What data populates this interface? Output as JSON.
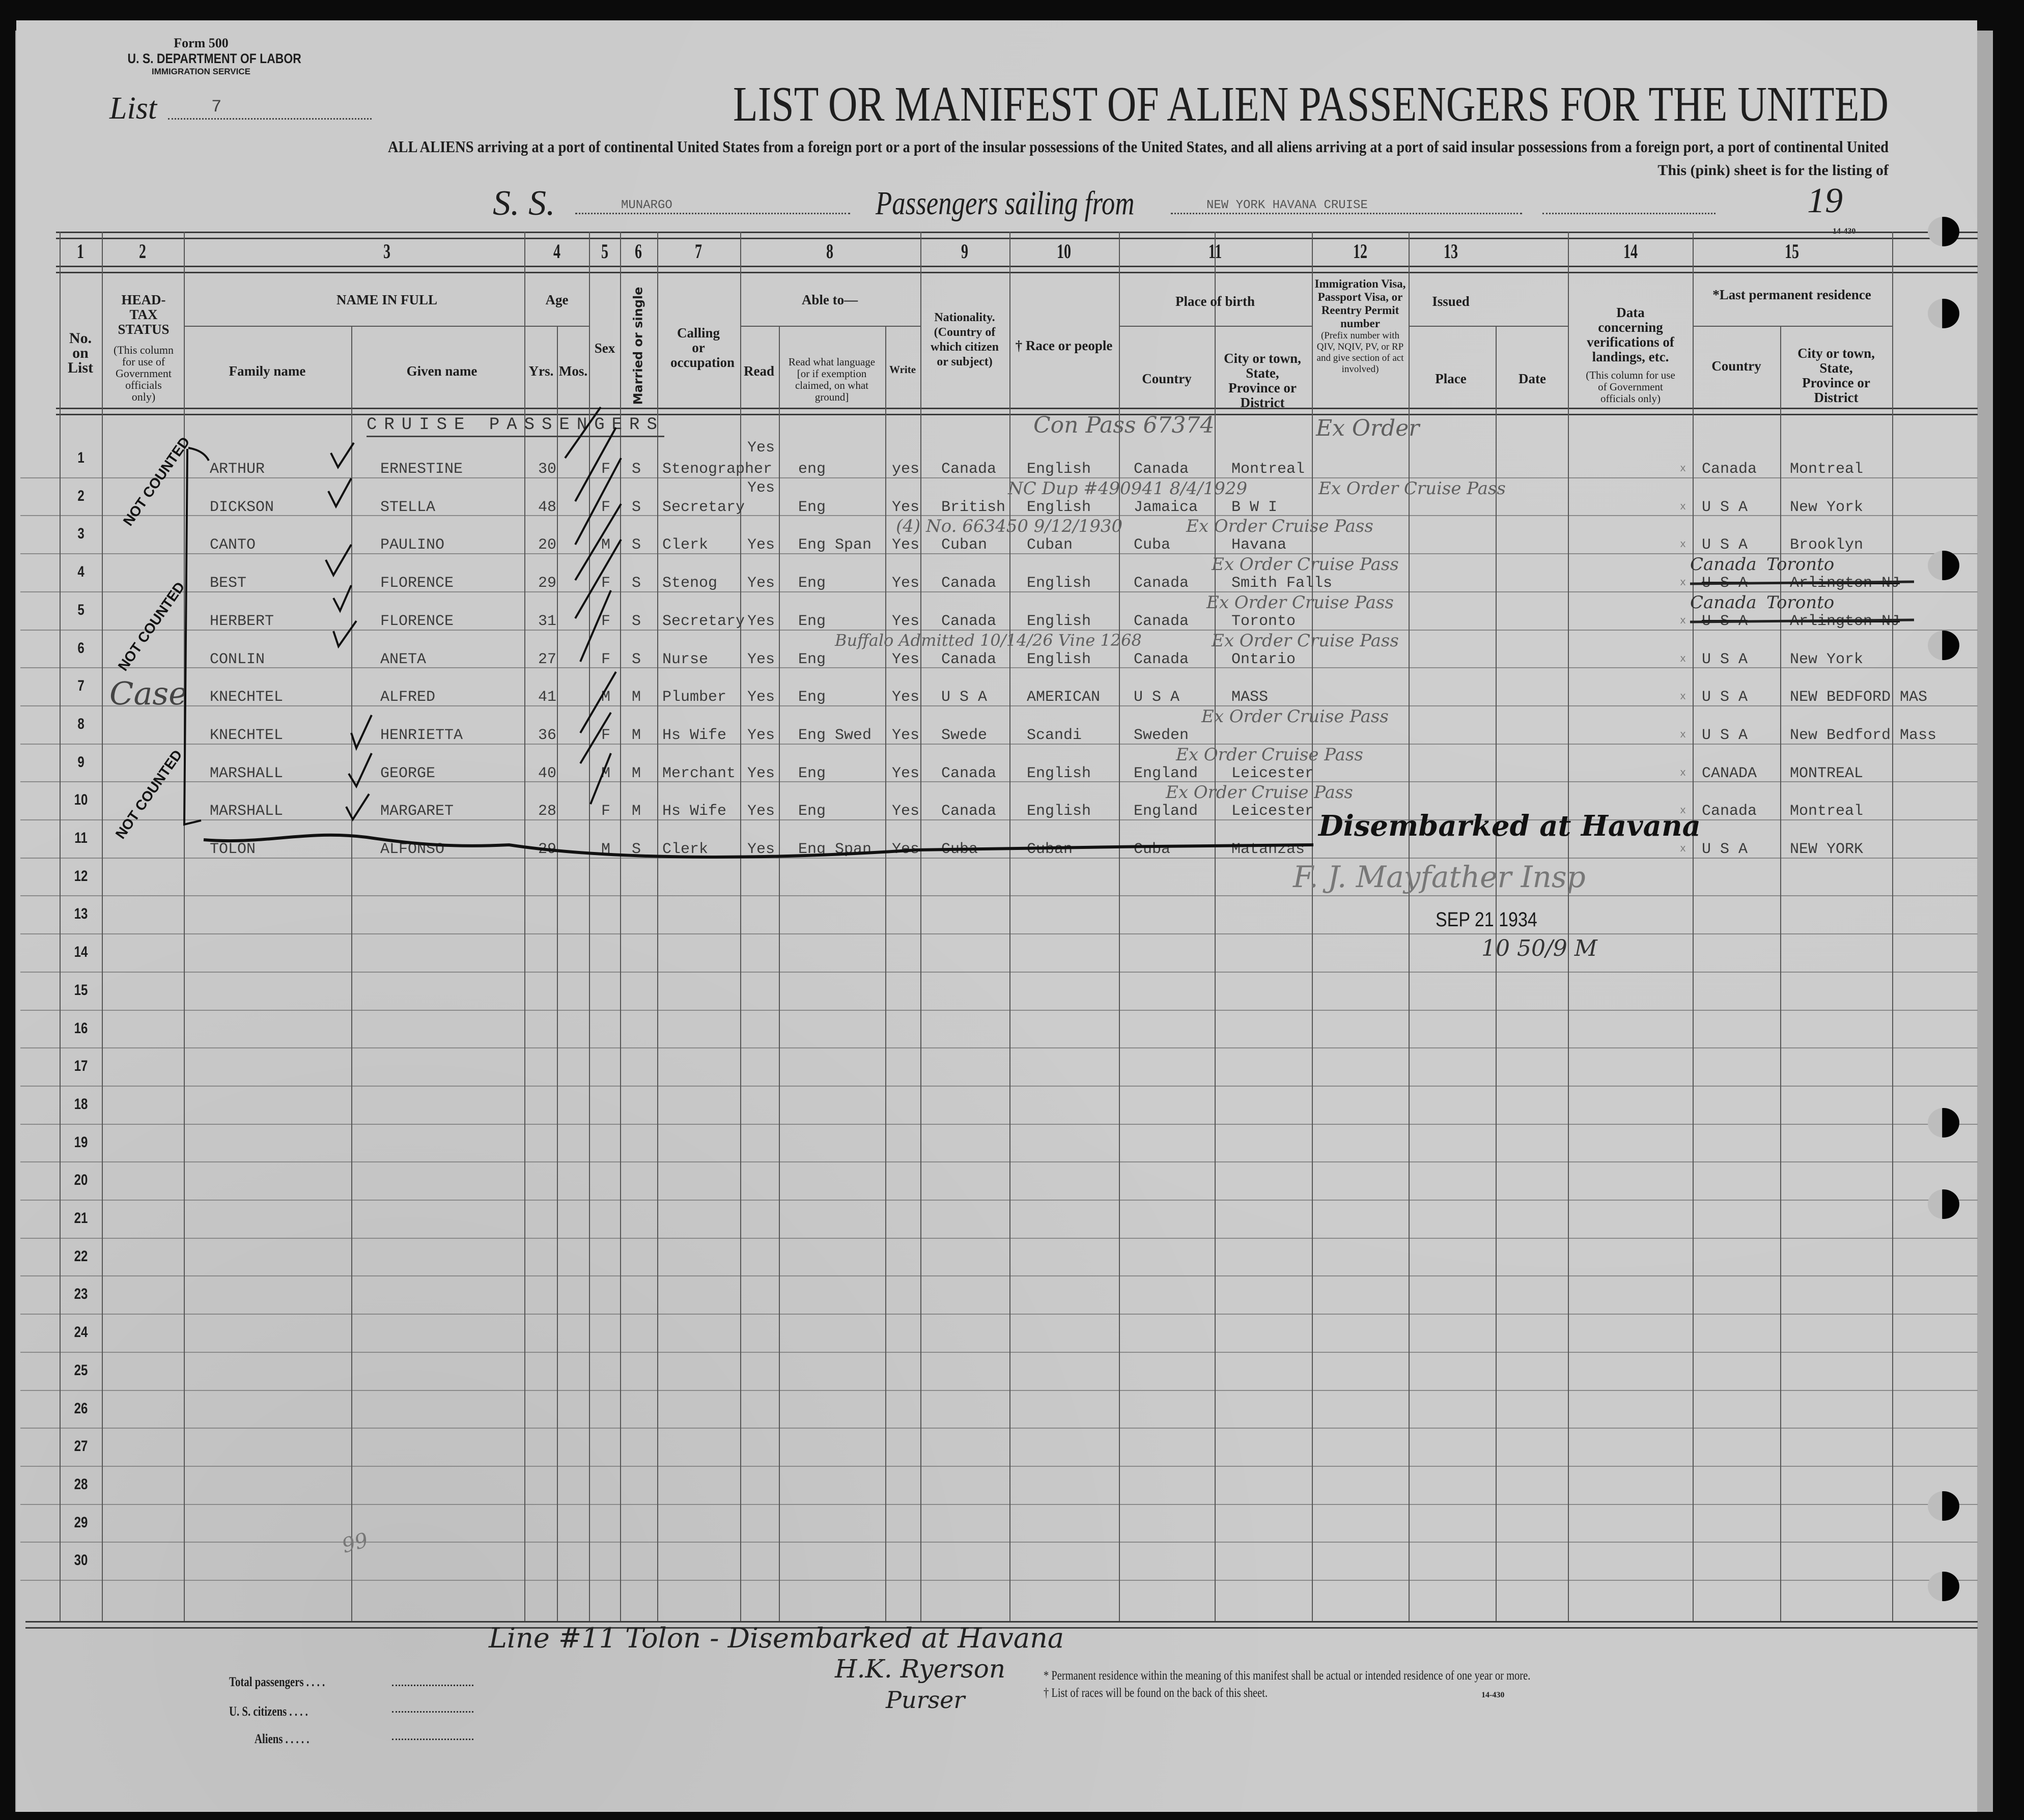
{
  "header": {
    "form_number": "Form 500",
    "department": "U. S. DEPARTMENT OF LABOR",
    "service": "IMMIGRATION SERVICE",
    "list_label": "List",
    "list_number": "7",
    "title": "LIST OR MANIFEST OF ALIEN PASSENGERS FOR THE UNITED",
    "instructions": "ALL ALIENS arriving at a port of continental United States from a foreign port or a port of the insular possessions of the United States, and all aliens arriving at a port of said insular possessions from a foreign port, a port of continental United",
    "pink_sheet": "This (pink) sheet is for the listing of",
    "ss_label": "S. S.",
    "ship_name": "MUNARGO",
    "sailing_label": "Passengers sailing from",
    "sailing_from": "NEW YORK HAVANA CRUISE",
    "year_label": "19",
    "form_code": "14-430"
  },
  "columns": {
    "numbers": [
      "1",
      "2",
      "3",
      "4",
      "5",
      "6",
      "7",
      "8",
      "9",
      "10",
      "11",
      "12",
      "13",
      "14",
      "15"
    ],
    "no_on_list": "No. on List",
    "head_tax": "HEAD-TAX STATUS",
    "head_tax_note": "(This column for use of Government officials only)",
    "name_in_full": "NAME IN FULL",
    "family_name": "Family name",
    "given_name": "Given name",
    "age": "Age",
    "yrs": "Yrs.",
    "mos": "Mos.",
    "sex": "Sex",
    "married": "Married or single",
    "calling": "Calling or occupation",
    "able_to": "Able to—",
    "read": "Read",
    "read_language": "Read what language [or if exemption claimed, on what ground]",
    "write": "Write",
    "nationality": "Nationality. (Country of which citizen or subject)",
    "race": "† Race or people",
    "place_of_birth": "Place of birth",
    "birth_country": "Country",
    "birth_city": "City or town, State, Province or District",
    "visa": "Immigration Visa, Passport Visa, or Reentry Permit number",
    "visa_note": "(Prefix number with QIV, NQIV, PV, or RP and give section of act involved)",
    "issued": "Issued",
    "issued_place": "Place",
    "issued_date": "Date",
    "verification": "Data concerning verifications of landings, etc.",
    "verification_note": "(This column for use of Government officials only)",
    "last_residence": "*Last permanent residence",
    "res_country": "Country",
    "res_city": "City or town, State, Province or District"
  },
  "section_label": "CRUISE PASSENGERS",
  "rows": [
    {
      "no": "1",
      "family": "ARTHUR",
      "given": "ERNESTINE",
      "yrs": "30",
      "sex": "F",
      "marital": "S",
      "occupation": "Stenographer",
      "read": "Yes",
      "language": "eng",
      "write": "yes",
      "nationality": "Canada",
      "race": "English",
      "birth_country": "Canada",
      "birth_city": "Montreal",
      "res_country": "Canada",
      "res_city": "Montreal"
    },
    {
      "no": "2",
      "family": "DICKSON",
      "given": "STELLA",
      "yrs": "48",
      "sex": "F",
      "marital": "S",
      "occupation": "Secretary",
      "read": "Yes",
      "language": "Eng",
      "write": "Yes",
      "nationality": "British",
      "race": "English",
      "birth_country": "Jamaica",
      "birth_city": "B W I",
      "res_country": "U S A",
      "res_city": "New York"
    },
    {
      "no": "3",
      "family": "CANTO",
      "given": "PAULINO",
      "yrs": "20",
      "sex": "M",
      "marital": "S",
      "occupation": "Clerk",
      "read": "Yes",
      "language": "Eng Span",
      "write": "Yes",
      "nationality": "Cuban",
      "race": "Cuban",
      "birth_country": "Cuba",
      "birth_city": "Havana",
      "res_country": "U S A",
      "res_city": "Brooklyn"
    },
    {
      "no": "4",
      "family": "BEST",
      "given": "FLORENCE",
      "yrs": "29",
      "sex": "F",
      "marital": "S",
      "occupation": "Stenog",
      "read": "Yes",
      "language": "Eng",
      "write": "Yes",
      "nationality": "Canada",
      "race": "English",
      "birth_country": "Canada",
      "birth_city": "Smith Falls",
      "res_country": "U S A",
      "res_city": "Arlington NJ",
      "res_struck": true
    },
    {
      "no": "5",
      "family": "HERBERT",
      "given": "FLORENCE",
      "yrs": "31",
      "sex": "F",
      "marital": "S",
      "occupation": "Secretary",
      "read": "Yes",
      "language": "Eng",
      "write": "Yes",
      "nationality": "Canada",
      "race": "English",
      "birth_country": "Canada",
      "birth_city": "Toronto",
      "res_country": "U S A",
      "res_city": "Arlington NJ",
      "res_struck": true
    },
    {
      "no": "6",
      "family": "CONLIN",
      "given": "ANETA",
      "yrs": "27",
      "sex": "F",
      "marital": "S",
      "occupation": "Nurse",
      "read": "Yes",
      "language": "Eng",
      "write": "Yes",
      "nationality": "Canada",
      "race": "English",
      "birth_country": "Canada",
      "birth_city": "Ontario",
      "res_country": "U S A",
      "res_city": "New York"
    },
    {
      "no": "7",
      "family": "KNECHTEL",
      "given": "ALFRED",
      "yrs": "41",
      "sex": "M",
      "marital": "M",
      "occupation": "Plumber",
      "read": "Yes",
      "language": "Eng",
      "write": "Yes",
      "nationality": "U S A",
      "race": "AMERICAN",
      "birth_country": "U S A",
      "birth_city": "MASS",
      "res_country": "U S A",
      "res_city": "NEW BEDFORD MAS"
    },
    {
      "no": "8",
      "family": "KNECHTEL",
      "given": "HENRIETTA",
      "yrs": "36",
      "sex": "F",
      "marital": "M",
      "occupation": "Hs Wife",
      "read": "Yes",
      "language": "Eng Swed",
      "write": "Yes",
      "nationality": "Swede",
      "race": "Scandi",
      "birth_country": "Sweden",
      "birth_city": "",
      "res_country": "U S A",
      "res_city": "New Bedford Mass"
    },
    {
      "no": "9",
      "family": "MARSHALL",
      "given": "GEORGE",
      "yrs": "40",
      "sex": "M",
      "marital": "M",
      "occupation": "Merchant",
      "read": "Yes",
      "language": "Eng",
      "write": "Yes",
      "nationality": "Canada",
      "race": "English",
      "birth_country": "England",
      "birth_city": "Leicester",
      "res_country": "CANADA",
      "res_city": "MONTREAL"
    },
    {
      "no": "10",
      "family": "MARSHALL",
      "given": "MARGARET",
      "yrs": "28",
      "sex": "F",
      "marital": "M",
      "occupation": "Hs Wife",
      "read": "Yes",
      "language": "Eng",
      "write": "Yes",
      "nationality": "Canada",
      "race": "English",
      "birth_country": "England",
      "birth_city": "Leicester",
      "res_country": "Canada",
      "res_city": "Montreal"
    },
    {
      "no": "11",
      "family": "TOLON",
      "given": "ALFONSO",
      "yrs": "29",
      "sex": "M",
      "marital": "S",
      "occupation": "Clerk",
      "read": "Yes",
      "language": "Eng Span",
      "write": "Yes",
      "nationality": "Cuba",
      "race": "Cuban",
      "birth_country": "Cuba",
      "birth_city": "Matanzas",
      "res_country": "U S A",
      "res_city": "NEW YORK",
      "struck": true
    }
  ],
  "empty_row_numbers": [
    "12",
    "13",
    "14",
    "15",
    "16",
    "17",
    "18",
    "19",
    "20",
    "21",
    "22",
    "23",
    "24",
    "25",
    "26",
    "27",
    "28",
    "29",
    "30"
  ],
  "annotations": {
    "not_counted": "NOT COUNTED",
    "case": "Case",
    "handwritten": [
      "Con Pass 67374",
      "Ex Order",
      "NC Dup #490941 8/4/1929",
      "Ex Order Cruise Pass",
      "(4) No. 663450 9/12/1930",
      "Ex Order Cruise Pass",
      "Ex Order Cruise Pass",
      "Ex Order Cruise Pass",
      "Buffalo Admitted 10/14/26 Vine 1268",
      "Ex Order Cruise Pass",
      "Ex Order Cruise Pass",
      "Ex Order Cruise Pass",
      "Ex Order Cruise Pass",
      "Canada",
      "Toronto",
      "Canada",
      "Toronto"
    ],
    "disembarked": "Disembarked at Havana",
    "inspector_signature": "F. J. Mayfather Insp",
    "stamp_date": "SEP 21 1934",
    "stamp_time": "10 50/9 M",
    "page_mark": "99"
  },
  "footer": {
    "line_note": "Line #11 Tolon - Disembarked at Havana",
    "purser_signature": "H.K. Ryerson",
    "purser_title": "Purser",
    "footnote_residence": "* Permanent residence within the meaning of this manifest shall be actual or intended residence of one year or more.",
    "footnote_races": "† List of races will be found on the back of this sheet.",
    "form_code": "14-430",
    "total_passengers": "Total passengers . . . .",
    "us_citizens": "U. S. citizens . . . .",
    "aliens": "Aliens . . . . ."
  },
  "colors": {
    "paper": "#cbcbcb",
    "ink": "#1e1e1e",
    "typewriter": "#3b3b3b",
    "pencil": "#5e5e5e"
  }
}
